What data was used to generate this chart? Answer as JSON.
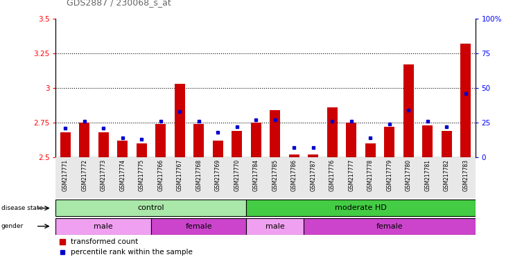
{
  "title": "GDS2887 / 230068_s_at",
  "samples": [
    "GSM217771",
    "GSM217772",
    "GSM217773",
    "GSM217774",
    "GSM217775",
    "GSM217766",
    "GSM217767",
    "GSM217768",
    "GSM217769",
    "GSM217770",
    "GSM217784",
    "GSM217785",
    "GSM217786",
    "GSM217787",
    "GSM217776",
    "GSM217777",
    "GSM217778",
    "GSM217779",
    "GSM217780",
    "GSM217781",
    "GSM217782",
    "GSM217783"
  ],
  "red_values": [
    2.68,
    2.75,
    2.68,
    2.62,
    2.6,
    2.74,
    3.03,
    2.74,
    2.62,
    2.69,
    2.75,
    2.84,
    2.52,
    2.52,
    2.86,
    2.75,
    2.6,
    2.72,
    3.17,
    2.73,
    2.69,
    3.32
  ],
  "blue_values": [
    2.71,
    2.76,
    2.71,
    2.64,
    2.63,
    2.76,
    2.83,
    2.76,
    2.68,
    2.72,
    2.77,
    2.77,
    2.57,
    2.57,
    2.76,
    2.76,
    2.64,
    2.74,
    2.84,
    2.76,
    2.72,
    2.96
  ],
  "ymin": 2.5,
  "ymax": 3.5,
  "yticks": [
    2.5,
    2.75,
    3.0,
    3.25,
    3.5
  ],
  "ytick_labels": [
    "2.5",
    "2.75",
    "3",
    "3.25",
    "3.5"
  ],
  "right_yticks": [
    0,
    25,
    50,
    75,
    100
  ],
  "right_ytick_labels": [
    "0",
    "25",
    "50",
    "75",
    "100%"
  ],
  "hlines": [
    2.75,
    3.0,
    3.25
  ],
  "disease_state_groups": [
    {
      "label": "control",
      "start": 0,
      "end": 10,
      "color": "#aae8aa"
    },
    {
      "label": "moderate HD",
      "start": 10,
      "end": 22,
      "color": "#44cc44"
    }
  ],
  "gender_groups": [
    {
      "label": "male",
      "start": 0,
      "end": 5,
      "color": "#f0a0f0"
    },
    {
      "label": "female",
      "start": 5,
      "end": 10,
      "color": "#cc44cc"
    },
    {
      "label": "male",
      "start": 10,
      "end": 13,
      "color": "#f0a0f0"
    },
    {
      "label": "female",
      "start": 13,
      "end": 22,
      "color": "#cc44cc"
    }
  ],
  "bar_color": "#CC0000",
  "dot_color": "#0000CC",
  "plot_bg": "#e8e8e8",
  "title_color": "#666666",
  "title_fontsize": 9,
  "bar_width": 0.55
}
